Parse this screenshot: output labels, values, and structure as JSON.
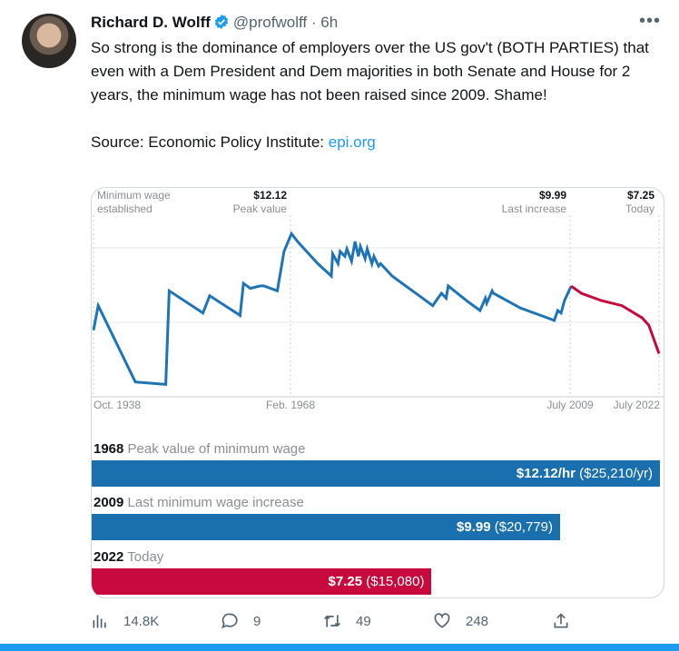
{
  "tweet": {
    "name": "Richard D. Wolff",
    "handle": "@profwolff",
    "separator": "·",
    "time": "6h",
    "more": "•••",
    "body_line": "So strong is the dominance of employers over the US gov't (BOTH PARTIES) that even with a Dem President and Dem majorities in both Senate and House for 2 years, the minimum wage has not been raised since 2009. Shame!",
    "source_prefix": "Source: Economic Policy Institute: ",
    "source_link": "epi.org"
  },
  "chart": {
    "marker_left": [
      "Minimum wage",
      "established"
    ],
    "marker_peak": [
      "$12.12",
      "Peak value"
    ],
    "marker_last": [
      "$9.99",
      "Last increase"
    ],
    "marker_today": [
      "$7.25",
      "Today"
    ],
    "x_labels": [
      "Oct. 1938",
      "Feb. 1968",
      "July 2009",
      "July 2022"
    ],
    "colors": {
      "historic": "#1f74b6",
      "recent": "#c8093e"
    },
    "bars": [
      {
        "year": "1968",
        "label": "Peak value of minimum wage",
        "value_bold": "$12.12",
        "value_unit": "/hr",
        "annual": " ($25,210/yr)",
        "value": 12.12,
        "color": "#1a6fae"
      },
      {
        "year": "2009",
        "label": "Last minimum wage increase",
        "value_bold": "$9.99",
        "value_unit": "",
        "annual": " ($20,779)",
        "value": 9.99,
        "color": "#1a6fae"
      },
      {
        "year": "2022",
        "label": "Today",
        "value_bold": "$7.25",
        "value_unit": "",
        "annual": " ($15,080)",
        "value": 7.25,
        "color": "#c8093e"
      }
    ]
  },
  "chart_data": {
    "type": "line",
    "title": "",
    "xlabel": "",
    "ylabel": "",
    "x": [
      1938.8,
      1939.5,
      1945,
      1949.5,
      1950,
      1955,
      1956,
      1960.5,
      1961,
      1962,
      1963.5,
      1964,
      1966,
      1967,
      1968.1,
      1969,
      1970,
      1972,
      1974,
      1974.2,
      1975,
      1975.3,
      1976,
      1976.3,
      1977,
      1977.5,
      1978,
      1978.3,
      1979,
      1979.3,
      1980,
      1980.3,
      1981,
      1981.3,
      1983,
      1985,
      1987,
      1989,
      1990.3,
      1991,
      1991.3,
      1994,
      1996,
      1996.8,
      1997,
      1997.8,
      1998,
      2002,
      2006,
      2007,
      2007.5,
      2008,
      2008.5,
      2009.5,
      2011,
      2014,
      2017,
      2020,
      2021,
      2022.5
    ],
    "values": [
      8.2,
      9.2,
      6.1,
      6.0,
      9.8,
      8.9,
      9.6,
      8.8,
      10.1,
      9.9,
      10.0,
      10.0,
      9.8,
      11.4,
      12.12,
      11.8,
      11.5,
      10.9,
      10.4,
      11.3,
      10.9,
      11.4,
      11.2,
      11.5,
      11.0,
      11.8,
      11.2,
      11.6,
      11.1,
      11.5,
      10.9,
      11.2,
      10.8,
      10.9,
      10.4,
      10.0,
      9.6,
      9.2,
      9.7,
      9.5,
      10.0,
      9.4,
      9.0,
      9.5,
      9.3,
      9.8,
      9.7,
      9.1,
      8.7,
      8.6,
      9.0,
      8.9,
      9.4,
      9.99,
      9.7,
      9.4,
      9.2,
      8.7,
      8.4,
      7.25
    ],
    "ylim": [
      5.5,
      12.5
    ]
  }
}
